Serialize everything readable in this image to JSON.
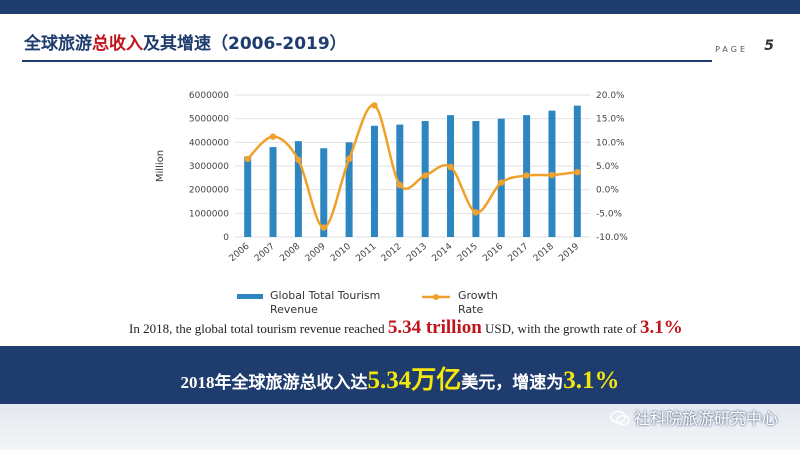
{
  "header": {
    "title_part1": "全球旅游",
    "title_highlight": "总收入",
    "title_part2": "及其增速（2006-2019）",
    "page_label": "PAGE",
    "page_number": "5"
  },
  "sentence": {
    "prefix": "In 2018, the global total tourism revenue reached ",
    "value": "5.34 trillion",
    "middle": " USD, with the growth rate of ",
    "rate": "3.1%"
  },
  "banner": {
    "prefix": "2018年全球旅游总收入达",
    "value": "5.34万亿",
    "middle": "美元，增速为",
    "rate": "3.1%"
  },
  "watermark": {
    "text": "社科院旅游研究中心",
    "icon": "wechat-icon"
  },
  "colors": {
    "navy": "#1f3c6e",
    "bar": "#2e86c1",
    "line": "#f0a12b",
    "red": "#c0141b",
    "yellow": "#f5e60c"
  },
  "chart_data": {
    "type": "bar",
    "categories": [
      "2006",
      "2007",
      "2008",
      "2009",
      "2010",
      "2011",
      "2012",
      "2013",
      "2014",
      "2015",
      "2016",
      "2017",
      "2018",
      "2019"
    ],
    "ylabel": "Million",
    "ylim": [
      0,
      6000000
    ],
    "y_ticks": [
      "0",
      "1000000",
      "2000000",
      "3000000",
      "4000000",
      "5000000",
      "6000000"
    ],
    "y2lim": [
      -10.0,
      20.0
    ],
    "y2_ticks": [
      "-10.0%",
      "-5.0%",
      "0.0%",
      "5.0%",
      "10.0%",
      "15.0%",
      "20.0%"
    ],
    "grid": true,
    "legend_position": "bottom",
    "series": [
      {
        "name": "Global Total Tourism Revenue",
        "type": "bar",
        "axis": "left",
        "values": [
          3400000,
          3800000,
          4050000,
          3750000,
          4000000,
          4700000,
          4750000,
          4900000,
          5150000,
          4900000,
          5000000,
          5150000,
          5340000,
          5550000
        ]
      },
      {
        "name": "Growth Rate",
        "type": "line",
        "axis": "right",
        "values": [
          6.5,
          11.2,
          6.3,
          -8.0,
          6.5,
          17.8,
          1.0,
          3.0,
          4.8,
          -4.8,
          1.5,
          3.0,
          3.1,
          3.7
        ]
      }
    ]
  }
}
